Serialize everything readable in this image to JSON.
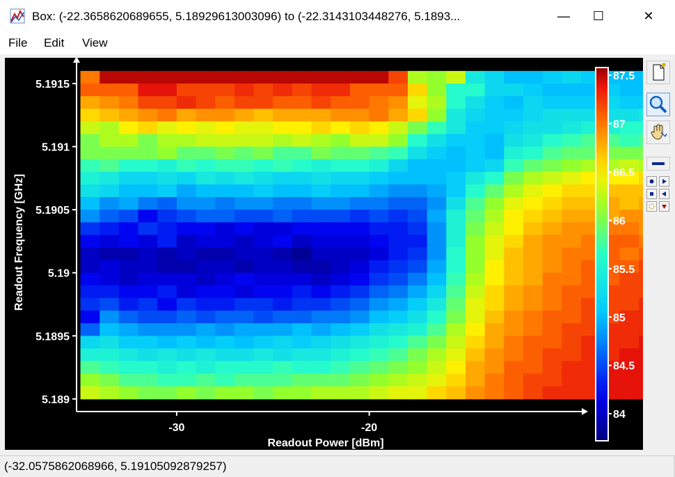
{
  "window": {
    "title": "Box: (-22.3658620689655, 5.18929613003096) to (-22.3143103448276, 5.1893...",
    "minimize_glyph": "—",
    "maximize_glyph": "☐",
    "close_glyph": "✕"
  },
  "menu": {
    "items": [
      "File",
      "Edit",
      "View"
    ]
  },
  "toolbar": {
    "icons": [
      "new-page-icon",
      "zoom-magnifier-icon",
      "pan-hand-icon",
      "horizontal-line-icon",
      "dot-icon",
      "arrow-right-icon",
      "arrow-left-icon",
      "point-marker-icon",
      "dotted-marker-icon",
      "arrow-down-icon"
    ]
  },
  "status": {
    "coordinates": "(-32.0575862068966, 5.19105092879257)"
  },
  "chart_data": {
    "type": "heatmap",
    "xlabel": "Readout Power [dBm]",
    "ylabel": "Readout Frequency [GHz]",
    "x_ticks": [
      "-30",
      "-20"
    ],
    "x_tick_values": [
      -30,
      -20
    ],
    "y_ticks": [
      "5.1915",
      "5.191",
      "5.1905",
      "5.19",
      "5.1895",
      "5.189"
    ],
    "y_tick_values": [
      5.1915,
      5.191,
      5.1905,
      5.19,
      5.1895,
      5.189
    ],
    "xlim": [
      -35.2,
      -9.0
    ],
    "ylim": [
      5.1889,
      5.19166
    ],
    "x_start": -34.5,
    "x_step": 1.0,
    "y_start": 5.19155,
    "y_step": -0.0001,
    "colorbar": {
      "ticks": [
        "87.5",
        "87",
        "86.5",
        "86",
        "85.5",
        "85",
        "84.5",
        "84"
      ],
      "tick_values": [
        87.5,
        87,
        86.5,
        86,
        85.5,
        85,
        84.5,
        84
      ],
      "range": [
        83.72,
        87.58
      ]
    },
    "z_units": "dB",
    "z": [
      [
        87.0,
        87.5,
        87.5,
        87.5,
        87.5,
        87.5,
        87.5,
        87.5,
        87.5,
        87.5,
        87.5,
        87.5,
        87.5,
        87.5,
        87.5,
        87.5,
        87.2,
        86.2,
        86.1,
        86.3,
        85.4,
        85.2,
        85.0,
        85.0,
        85.1,
        85.2,
        85.1,
        85.0,
        85.0,
        85.0,
        85.0,
        85.2
      ],
      [
        87.1,
        87.1,
        87.1,
        87.4,
        87.4,
        87.2,
        87.2,
        87.2,
        87.3,
        87.2,
        87.3,
        87.2,
        87.3,
        87.3,
        87.1,
        87.1,
        87.1,
        86.6,
        86.1,
        85.6,
        85.6,
        85.2,
        85.2,
        85.1,
        85.0,
        85.0,
        85.0,
        85.1,
        85.0,
        85.0,
        85.0,
        85.1
      ],
      [
        86.8,
        86.9,
        87.0,
        87.2,
        87.2,
        87.3,
        87.2,
        87.1,
        87.2,
        87.2,
        87.1,
        87.1,
        87.2,
        87.1,
        87.1,
        87.0,
        86.9,
        86.4,
        86.2,
        85.6,
        85.3,
        85.1,
        85.0,
        85.2,
        85.1,
        85.1,
        85.1,
        85.2,
        85.1,
        85.1,
        85.1,
        85.3
      ],
      [
        86.6,
        86.7,
        86.8,
        86.9,
        87.0,
        86.8,
        86.9,
        86.9,
        86.8,
        86.7,
        86.8,
        86.8,
        86.8,
        86.9,
        86.9,
        87.0,
        86.8,
        86.6,
        86.1,
        85.4,
        85.2,
        85.1,
        85.1,
        85.2,
        85.3,
        85.3,
        85.3,
        85.3,
        85.3,
        85.4,
        85.4,
        85.4
      ],
      [
        86.3,
        86.2,
        86.5,
        86.6,
        86.4,
        86.5,
        86.4,
        86.5,
        86.4,
        86.4,
        86.5,
        86.5,
        86.6,
        86.5,
        86.6,
        86.5,
        86.3,
        86.0,
        85.7,
        85.4,
        85.1,
        85.1,
        85.2,
        85.3,
        85.3,
        85.4,
        85.5,
        85.5,
        85.6,
        85.6,
        85.6,
        85.6
      ],
      [
        86.0,
        86.2,
        86.2,
        86.0,
        86.2,
        86.2,
        86.3,
        86.3,
        86.3,
        86.3,
        86.2,
        86.3,
        86.2,
        86.1,
        86.3,
        86.3,
        86.1,
        85.6,
        85.3,
        85.1,
        85.1,
        85.0,
        85.3,
        85.4,
        85.6,
        85.7,
        85.8,
        85.8,
        85.7,
        85.8,
        85.8,
        85.9
      ],
      [
        86.0,
        86.0,
        86.0,
        86.0,
        86.1,
        85.9,
        85.9,
        86.0,
        85.9,
        86.0,
        85.8,
        85.8,
        86.0,
        85.9,
        85.9,
        85.8,
        85.7,
        85.3,
        85.1,
        85.0,
        85.1,
        85.0,
        85.5,
        85.6,
        85.8,
        85.9,
        85.9,
        86.0,
        86.0,
        86.0,
        86.1,
        86.1
      ],
      [
        85.7,
        85.8,
        85.6,
        85.6,
        85.5,
        85.7,
        85.6,
        85.7,
        85.7,
        85.6,
        85.7,
        85.6,
        85.5,
        85.6,
        85.6,
        85.5,
        85.2,
        85.0,
        85.0,
        85.0,
        85.1,
        85.2,
        85.7,
        85.9,
        86.0,
        86.1,
        86.2,
        86.2,
        86.3,
        86.2,
        86.3,
        86.3
      ],
      [
        85.5,
        85.4,
        85.2,
        85.2,
        85.3,
        85.2,
        85.4,
        85.3,
        85.4,
        85.3,
        85.2,
        85.2,
        85.3,
        85.2,
        85.2,
        85.1,
        85.0,
        85.0,
        85.0,
        85.1,
        85.4,
        85.6,
        86.0,
        86.2,
        86.3,
        86.4,
        86.5,
        86.5,
        86.5,
        86.6,
        86.6,
        86.6
      ],
      [
        85.3,
        85.2,
        85.0,
        85.0,
        85.1,
        84.9,
        85.0,
        85.0,
        85.0,
        85.1,
        85.0,
        85.0,
        85.1,
        85.0,
        85.0,
        84.9,
        84.8,
        84.8,
        84.9,
        85.1,
        85.6,
        85.9,
        86.2,
        86.4,
        86.5,
        86.6,
        86.6,
        86.7,
        86.7,
        86.7,
        86.7,
        86.7
      ],
      [
        85.0,
        84.8,
        84.9,
        84.7,
        84.6,
        84.8,
        84.8,
        84.7,
        84.8,
        84.8,
        84.7,
        84.7,
        84.8,
        84.8,
        84.7,
        84.7,
        84.6,
        84.6,
        84.8,
        85.3,
        85.8,
        86.1,
        86.4,
        86.5,
        86.6,
        86.7,
        86.7,
        86.8,
        86.7,
        86.8,
        86.8,
        86.8
      ],
      [
        84.8,
        84.6,
        84.5,
        84.2,
        84.4,
        84.5,
        84.6,
        84.6,
        84.5,
        84.5,
        84.6,
        84.5,
        84.5,
        84.5,
        84.4,
        84.5,
        84.4,
        84.5,
        84.9,
        85.5,
        85.9,
        86.2,
        86.5,
        86.6,
        86.7,
        86.8,
        86.8,
        86.8,
        86.9,
        86.9,
        86.9,
        86.9
      ],
      [
        84.4,
        84.3,
        84.2,
        84.4,
        84.3,
        84.2,
        84.2,
        84.1,
        84.2,
        84.1,
        84.1,
        84.2,
        84.2,
        84.2,
        84.2,
        84.3,
        84.3,
        84.4,
        84.8,
        85.5,
        86.0,
        86.3,
        86.5,
        86.7,
        86.8,
        86.9,
        86.9,
        87.0,
        87.0,
        86.9,
        87.0,
        87.0
      ],
      [
        84.2,
        84.1,
        84.2,
        84.1,
        84.3,
        84.0,
        84.1,
        84.1,
        84.0,
        84.1,
        84.2,
        84.0,
        84.1,
        84.1,
        84.1,
        84.2,
        84.3,
        84.3,
        84.8,
        85.5,
        86.1,
        86.4,
        86.6,
        86.8,
        86.9,
        86.9,
        87.0,
        87.1,
        87.1,
        87.0,
        87.1,
        87.1
      ],
      [
        84.0,
        83.9,
        83.9,
        84.0,
        83.9,
        84.0,
        83.9,
        83.9,
        84.0,
        84.0,
        83.9,
        83.8,
        84.0,
        84.0,
        84.0,
        84.1,
        84.3,
        84.4,
        84.8,
        85.6,
        86.1,
        86.4,
        86.7,
        86.8,
        86.9,
        87.0,
        87.0,
        87.1,
        87.0,
        87.1,
        87.1,
        87.1
      ],
      [
        84.0,
        84.1,
        84.0,
        84.0,
        83.9,
        83.9,
        84.0,
        84.0,
        83.9,
        84.0,
        84.0,
        83.9,
        83.9,
        84.0,
        84.1,
        84.3,
        84.4,
        84.5,
        84.9,
        85.6,
        86.1,
        86.5,
        86.7,
        86.8,
        86.9,
        87.0,
        87.1,
        87.1,
        87.1,
        87.2,
        87.1,
        87.1
      ],
      [
        84.2,
        84.1,
        84.0,
        84.1,
        84.1,
        84.1,
        84.0,
        84.1,
        84.2,
        84.1,
        84.1,
        84.1,
        84.0,
        84.1,
        84.2,
        84.4,
        84.5,
        84.7,
        85.0,
        85.7,
        86.2,
        86.5,
        86.7,
        86.8,
        87.0,
        87.0,
        87.1,
        87.1,
        87.2,
        87.2,
        87.1,
        87.2
      ],
      [
        84.3,
        84.3,
        84.2,
        84.2,
        84.3,
        84.1,
        84.2,
        84.2,
        84.1,
        84.2,
        84.2,
        84.3,
        84.2,
        84.3,
        84.4,
        84.6,
        84.7,
        84.9,
        85.2,
        85.8,
        86.3,
        86.6,
        86.8,
        86.9,
        87.0,
        87.1,
        87.1,
        87.2,
        87.2,
        87.2,
        87.2,
        87.2
      ],
      [
        84.4,
        84.5,
        84.3,
        84.4,
        84.2,
        84.4,
        84.3,
        84.3,
        84.4,
        84.4,
        84.3,
        84.4,
        84.4,
        84.5,
        84.6,
        84.8,
        84.9,
        85.1,
        85.4,
        85.9,
        86.4,
        86.6,
        86.8,
        86.9,
        87.0,
        87.1,
        87.2,
        87.2,
        87.2,
        87.3,
        87.2,
        87.2
      ],
      [
        84.2,
        84.8,
        84.6,
        84.5,
        84.5,
        84.6,
        84.5,
        84.6,
        84.6,
        84.5,
        84.6,
        84.6,
        84.7,
        84.7,
        84.8,
        85.0,
        85.1,
        85.3,
        85.6,
        86.0,
        86.4,
        86.7,
        86.9,
        87.0,
        87.1,
        87.1,
        87.2,
        87.2,
        87.3,
        87.3,
        87.3,
        87.3
      ],
      [
        84.6,
        85.0,
        84.9,
        84.8,
        84.8,
        84.8,
        84.9,
        84.8,
        84.9,
        84.9,
        84.9,
        85.0,
        84.9,
        85.0,
        85.1,
        85.3,
        85.4,
        85.5,
        85.8,
        86.2,
        86.5,
        86.8,
        86.9,
        87.0,
        87.1,
        87.2,
        87.2,
        87.3,
        87.3,
        87.3,
        87.3,
        87.3
      ],
      [
        85.2,
        85.3,
        85.1,
        85.1,
        85.0,
        85.1,
        85.0,
        85.1,
        85.0,
        85.1,
        85.2,
        85.1,
        85.2,
        85.3,
        85.4,
        85.5,
        85.6,
        85.8,
        86.0,
        86.3,
        86.6,
        86.8,
        87.0,
        87.1,
        87.1,
        87.2,
        87.3,
        87.3,
        87.3,
        87.4,
        87.3,
        87.4
      ],
      [
        85.5,
        85.5,
        85.4,
        85.3,
        85.4,
        85.3,
        85.4,
        85.3,
        85.3,
        85.4,
        85.3,
        85.4,
        85.4,
        85.5,
        85.6,
        85.7,
        85.8,
        86.0,
        86.2,
        86.4,
        86.7,
        86.9,
        87.0,
        87.1,
        87.2,
        87.2,
        87.3,
        87.3,
        87.4,
        87.4,
        87.4,
        87.4
      ],
      [
        85.8,
        85.7,
        85.6,
        85.6,
        85.5,
        85.6,
        85.5,
        85.6,
        85.6,
        85.6,
        85.7,
        85.6,
        85.6,
        85.7,
        85.8,
        85.9,
        86.0,
        86.1,
        86.3,
        86.5,
        86.8,
        86.9,
        87.1,
        87.1,
        87.2,
        87.3,
        87.3,
        87.4,
        87.4,
        87.4,
        87.4,
        87.4
      ],
      [
        86.1,
        86.0,
        85.8,
        85.8,
        85.7,
        85.7,
        85.8,
        85.7,
        85.8,
        85.8,
        85.8,
        85.9,
        85.9,
        85.9,
        86.0,
        86.1,
        86.2,
        86.3,
        86.4,
        86.6,
        86.8,
        87.0,
        87.1,
        87.2,
        87.2,
        87.3,
        87.3,
        87.4,
        87.4,
        87.4,
        87.4,
        87.4
      ],
      [
        86.3,
        86.2,
        86.1,
        86.0,
        86.0,
        86.1,
        86.0,
        86.1,
        86.1,
        86.0,
        86.1,
        86.1,
        86.2,
        86.2,
        86.2,
        86.3,
        86.4,
        86.4,
        86.6,
        86.7,
        86.9,
        87.0,
        87.1,
        87.2,
        87.3,
        87.3,
        87.3,
        87.4,
        87.4,
        87.4,
        87.4,
        87.4
      ]
    ]
  }
}
